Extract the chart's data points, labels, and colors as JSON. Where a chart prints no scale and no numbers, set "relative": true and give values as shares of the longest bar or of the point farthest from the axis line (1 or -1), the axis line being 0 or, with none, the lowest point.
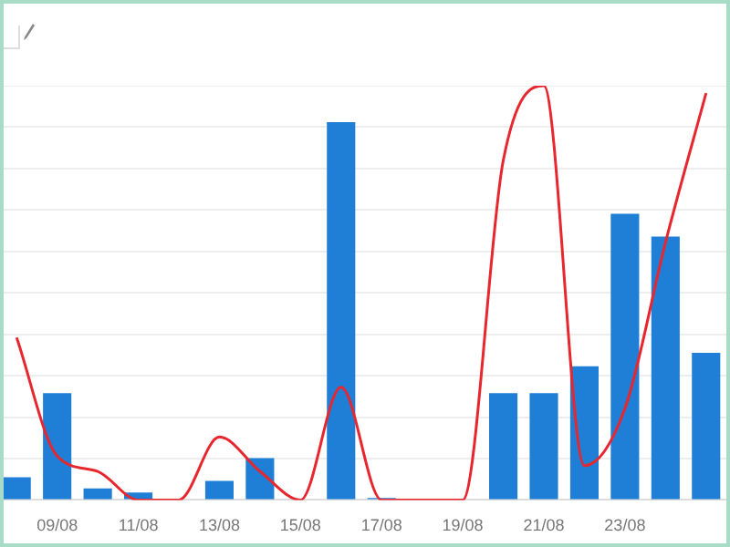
{
  "chart_data": {
    "type": "bar",
    "relative": true,
    "grid": "y",
    "categories": [
      null,
      "09/08",
      null,
      "11/08",
      null,
      "13/08",
      null,
      "15/08",
      null,
      "17/08",
      null,
      "19/08",
      null,
      "21/08",
      null,
      "23/08",
      null,
      null
    ],
    "series": [
      {
        "color": "#1f7fd6",
        "values": [
          0.055,
          0.258,
          0.028,
          0.018,
          0,
          0.046,
          0.101,
          0,
          0.912,
          0.005,
          0,
          0,
          0.258,
          0.258,
          0.323,
          0.691,
          0.636,
          0.355
        ]
      },
      {
        "type": "line",
        "color": "#e8262e",
        "values": [
          0.392,
          0.106,
          0.069,
          0,
          0,
          0.152,
          0.069,
          0,
          0.272,
          0,
          0,
          0,
          0.82,
          1,
          0.083,
          0.221,
          0.622,
          0.982
        ]
      }
    ]
  }
}
